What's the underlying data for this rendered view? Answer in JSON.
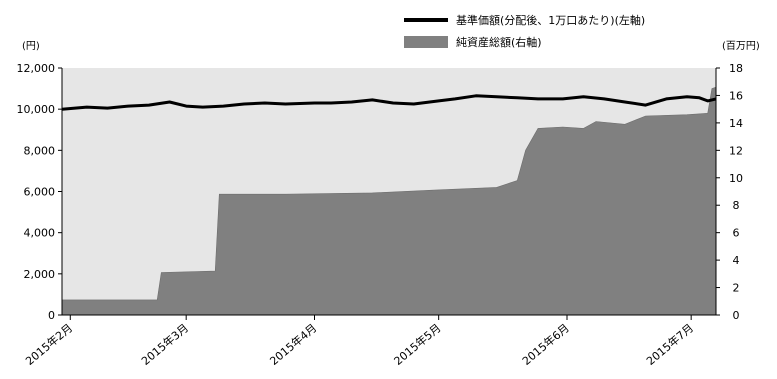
{
  "chart_data": {
    "type": "line+area",
    "title": "",
    "left_axis": {
      "unit": "(円)",
      "ticks": [
        0,
        2000,
        4000,
        6000,
        8000,
        10000,
        12000
      ],
      "ylim": [
        0,
        12000
      ]
    },
    "right_axis": {
      "unit": "(百万円)",
      "ticks": [
        0,
        2,
        4,
        6,
        8,
        10,
        12,
        14,
        16,
        18
      ],
      "ylim": [
        0,
        18
      ]
    },
    "x_axis": {
      "start": "2015-01-30",
      "end": "2015-07-07",
      "tick_labels": [
        {
          "date": "2015-02-01",
          "label": "2015年2月"
        },
        {
          "date": "2015-03-01",
          "label": "2015年3月"
        },
        {
          "date": "2015-04-01",
          "label": "2015年4月"
        },
        {
          "date": "2015-05-01",
          "label": "2015年5月"
        },
        {
          "date": "2015-06-01",
          "label": "2015年6月"
        },
        {
          "date": "2015-07-01",
          "label": "2015年7月"
        }
      ]
    },
    "legend": {
      "placement": "top-right",
      "entries": [
        {
          "name": "基準価額(分配後、1万口あたり)(左軸)",
          "type": "line",
          "color": "#000000"
        },
        {
          "name": "純資産総額(右軸)",
          "type": "area",
          "color": "#808080"
        }
      ]
    },
    "series": [
      {
        "name": "基準価額(分配後、1万口あたり)(左軸)",
        "axis": "left",
        "type": "line",
        "points": [
          [
            "2015-01-30",
            10000
          ],
          [
            "2015-02-05",
            10100
          ],
          [
            "2015-02-10",
            10050
          ],
          [
            "2015-02-15",
            10150
          ],
          [
            "2015-02-20",
            10200
          ],
          [
            "2015-02-25",
            10350
          ],
          [
            "2015-03-01",
            10150
          ],
          [
            "2015-03-05",
            10100
          ],
          [
            "2015-03-10",
            10150
          ],
          [
            "2015-03-15",
            10250
          ],
          [
            "2015-03-20",
            10300
          ],
          [
            "2015-03-25",
            10250
          ],
          [
            "2015-04-01",
            10300
          ],
          [
            "2015-04-05",
            10300
          ],
          [
            "2015-04-10",
            10350
          ],
          [
            "2015-04-15",
            10450
          ],
          [
            "2015-04-20",
            10300
          ],
          [
            "2015-04-25",
            10250
          ],
          [
            "2015-05-01",
            10400
          ],
          [
            "2015-05-05",
            10500
          ],
          [
            "2015-05-10",
            10650
          ],
          [
            "2015-05-15",
            10600
          ],
          [
            "2015-05-20",
            10550
          ],
          [
            "2015-05-25",
            10500
          ],
          [
            "2015-05-31",
            10500
          ],
          [
            "2015-06-05",
            10600
          ],
          [
            "2015-06-10",
            10500
          ],
          [
            "2015-06-15",
            10350
          ],
          [
            "2015-06-20",
            10200
          ],
          [
            "2015-06-25",
            10500
          ],
          [
            "2015-06-30",
            10600
          ],
          [
            "2015-07-03",
            10550
          ],
          [
            "2015-07-05",
            10400
          ],
          [
            "2015-07-07",
            10500
          ]
        ]
      },
      {
        "name": "純資産総額(右軸)",
        "axis": "right",
        "type": "area",
        "points": [
          [
            "2015-01-30",
            1.1
          ],
          [
            "2015-02-22",
            1.1
          ],
          [
            "2015-02-23",
            3.1
          ],
          [
            "2015-03-08",
            3.2
          ],
          [
            "2015-03-09",
            8.8
          ],
          [
            "2015-03-25",
            8.8
          ],
          [
            "2015-04-15",
            8.9
          ],
          [
            "2015-04-30",
            9.1
          ],
          [
            "2015-05-15",
            9.3
          ],
          [
            "2015-05-20",
            9.8
          ],
          [
            "2015-05-22",
            12.0
          ],
          [
            "2015-05-25",
            13.6
          ],
          [
            "2015-05-31",
            13.7
          ],
          [
            "2015-06-05",
            13.6
          ],
          [
            "2015-06-08",
            14.1
          ],
          [
            "2015-06-15",
            13.9
          ],
          [
            "2015-06-20",
            14.5
          ],
          [
            "2015-06-30",
            14.6
          ],
          [
            "2015-07-05",
            14.7
          ],
          [
            "2015-07-06",
            16.5
          ],
          [
            "2015-07-07",
            16.6
          ]
        ]
      }
    ],
    "grid": false,
    "colors": {
      "plot_bg": "#e6e6e6",
      "area": "#808080",
      "line": "#000000"
    }
  }
}
